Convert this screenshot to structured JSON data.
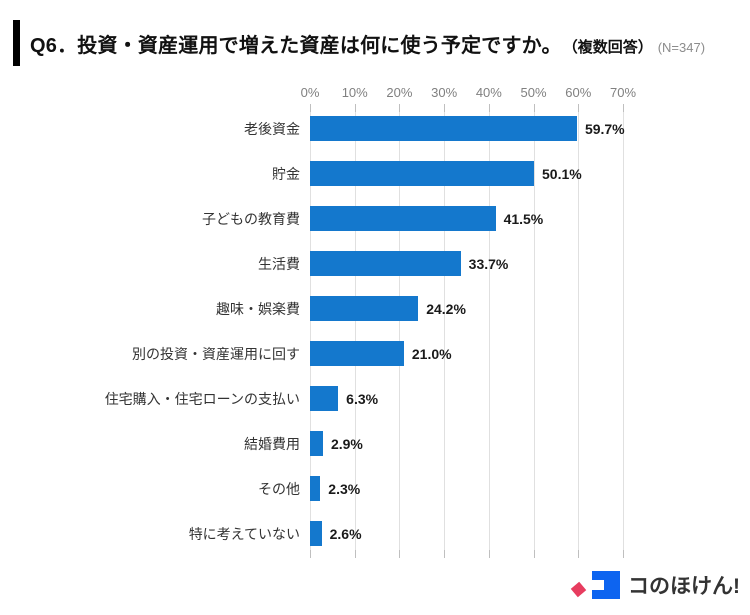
{
  "header": {
    "title": "Q6．投資・資産運用で増えた資産は何に使う予定ですか。",
    "multi_answer_note": "（複数回答）",
    "sample_size": "(N=347)"
  },
  "chart_data": {
    "type": "bar",
    "orientation": "horizontal",
    "title": "投資・資産運用で増えた資産は何に使う予定ですか",
    "categories": [
      "老後資金",
      "貯金",
      "子どもの教育費",
      "生活費",
      "趣味・娯楽費",
      "別の投資・資産運用に回す",
      "住宅購入・住宅ローンの支払い",
      "結婚費用",
      "その他",
      "特に考えていない"
    ],
    "values": [
      59.7,
      50.1,
      41.5,
      33.7,
      24.2,
      21.0,
      6.3,
      2.9,
      2.3,
      2.6
    ],
    "value_labels": [
      "59.7%",
      "50.1%",
      "41.5%",
      "33.7%",
      "24.2%",
      "21.0%",
      "6.3%",
      "2.9%",
      "2.3%",
      "2.6%"
    ],
    "xlabel": "",
    "ylabel": "",
    "xlim": [
      0,
      70
    ],
    "x_ticks": [
      "0%",
      "10%",
      "20%",
      "30%",
      "40%",
      "50%",
      "60%",
      "70%"
    ],
    "grid": true,
    "legend": false
  },
  "colors": {
    "bar_blue": "#1478cd",
    "grid_line": "#e0e0e0",
    "tick_mark": "#bfbfbf",
    "axis_text": "#808080",
    "title_text": "#111111",
    "value_text": "#1a1a1a",
    "logo_blue": "#0d64f0",
    "logo_pink": "#e73c5f"
  },
  "footer": {
    "logo_text": "コのほけん!"
  }
}
